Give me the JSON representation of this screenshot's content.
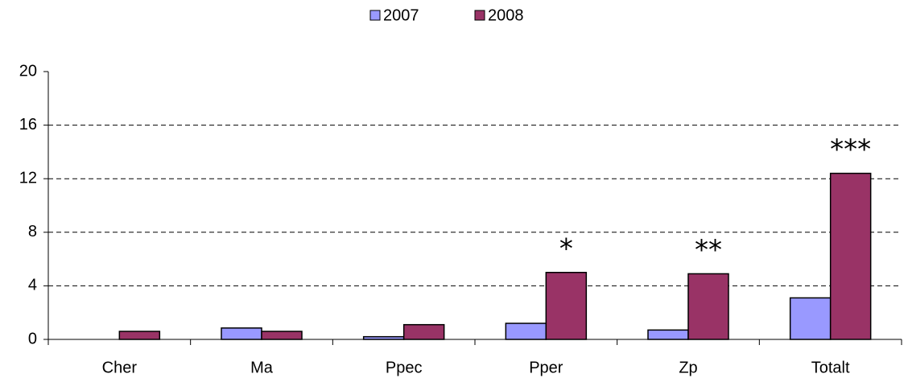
{
  "chart_data": {
    "type": "bar",
    "categories": [
      "Cher",
      "Ma",
      "Ppec",
      "Pper",
      "Zp",
      "Totalt"
    ],
    "series": [
      {
        "name": "2007",
        "color": "#9999ff",
        "values": [
          0,
          0.85,
          0.2,
          1.2,
          0.7,
          3.1
        ]
      },
      {
        "name": "2008",
        "color": "#993366",
        "values": [
          0.6,
          0.6,
          1.1,
          5.0,
          4.9,
          12.4
        ]
      }
    ],
    "ylim": [
      0,
      20
    ],
    "yticks": [
      0,
      4,
      8,
      12,
      16,
      20
    ],
    "grid": true,
    "legend": "top",
    "annotations": [
      {
        "text": "*",
        "category": "Pper",
        "series": "2008"
      },
      {
        "text": "**",
        "category": "Zp",
        "series": "2008"
      },
      {
        "text": "***",
        "category": "Totalt",
        "series": "2008"
      }
    ]
  }
}
